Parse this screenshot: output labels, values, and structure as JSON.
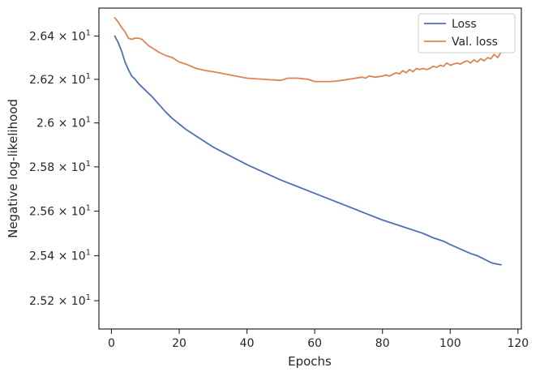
{
  "chart_data": {
    "type": "line",
    "xlabel": "Epochs",
    "ylabel": "Negative log-likelihood",
    "xlim": [
      -3.7,
      121
    ],
    "ylim": [
      25.075,
      26.53
    ],
    "y_scale": "log",
    "x_ticks": [
      0,
      20,
      40,
      60,
      80,
      100,
      120
    ],
    "x_tick_labels": [
      "0",
      "20",
      "40",
      "60",
      "80",
      "100",
      "120"
    ],
    "y_ticks": [
      25.2,
      25.4,
      25.6,
      25.8,
      26.0,
      26.2,
      26.4
    ],
    "y_tick_labels": [
      {
        "mant": "2.52",
        "exp": "1"
      },
      {
        "mant": "2.54",
        "exp": "1"
      },
      {
        "mant": "2.56",
        "exp": "1"
      },
      {
        "mant": "2.58",
        "exp": "1"
      },
      {
        "mant": "2.6",
        "exp": "1"
      },
      {
        "mant": "2.62",
        "exp": "1"
      },
      {
        "mant": "2.64",
        "exp": "1"
      }
    ],
    "grid": false,
    "legend_position": "top-right",
    "series": [
      {
        "name": "Loss",
        "color": "#4c72b0",
        "x": [
          1,
          2,
          3,
          4,
          5,
          6,
          7,
          8,
          9,
          10,
          12,
          14,
          16,
          18,
          20,
          22,
          25,
          28,
          30,
          35,
          40,
          45,
          50,
          55,
          60,
          65,
          70,
          75,
          80,
          85,
          88,
          90,
          92,
          95,
          98,
          100,
          103,
          106,
          108,
          110,
          112,
          113,
          115
        ],
        "y": [
          26.4,
          26.37,
          26.33,
          26.28,
          26.245,
          26.215,
          26.2,
          26.18,
          26.165,
          26.15,
          26.12,
          26.085,
          26.05,
          26.02,
          25.995,
          25.97,
          25.94,
          25.91,
          25.89,
          25.85,
          25.81,
          25.775,
          25.74,
          25.71,
          25.68,
          25.65,
          25.62,
          25.59,
          25.56,
          25.535,
          25.52,
          25.51,
          25.5,
          25.48,
          25.465,
          25.45,
          25.43,
          25.41,
          25.4,
          25.385,
          25.37,
          25.365,
          25.36
        ]
      },
      {
        "name": "Val. loss",
        "color": "#dd8452",
        "x": [
          1,
          2,
          3,
          4,
          5,
          6,
          7,
          8,
          9,
          10,
          11,
          12,
          14,
          16,
          18,
          20,
          22,
          25,
          28,
          30,
          35,
          40,
          45,
          50,
          52,
          55,
          58,
          60,
          62,
          65,
          68,
          70,
          72,
          74,
          75,
          76,
          78,
          80,
          81,
          82,
          84,
          85,
          86,
          87,
          88,
          89,
          90,
          91,
          92,
          93,
          94,
          95,
          96,
          97,
          98,
          99,
          100,
          101,
          102,
          103,
          104,
          105,
          106,
          107,
          108,
          109,
          110,
          111,
          112,
          113,
          114,
          115
        ],
        "y": [
          26.485,
          26.465,
          26.44,
          26.42,
          26.39,
          26.385,
          26.39,
          26.39,
          26.385,
          26.37,
          26.355,
          26.345,
          26.325,
          26.31,
          26.3,
          26.28,
          26.27,
          26.25,
          26.24,
          26.235,
          26.22,
          26.205,
          26.2,
          26.195,
          26.205,
          26.205,
          26.2,
          26.19,
          26.19,
          26.19,
          26.195,
          26.2,
          26.205,
          26.21,
          26.205,
          26.215,
          26.21,
          26.215,
          26.22,
          26.215,
          26.23,
          26.225,
          26.24,
          26.23,
          26.245,
          26.235,
          26.25,
          26.245,
          26.25,
          26.245,
          26.25,
          26.26,
          26.255,
          26.265,
          26.26,
          26.275,
          26.265,
          26.27,
          26.275,
          26.27,
          26.28,
          26.285,
          26.275,
          26.29,
          26.28,
          26.295,
          26.285,
          26.3,
          26.295,
          26.315,
          26.3,
          26.325
        ]
      }
    ]
  }
}
